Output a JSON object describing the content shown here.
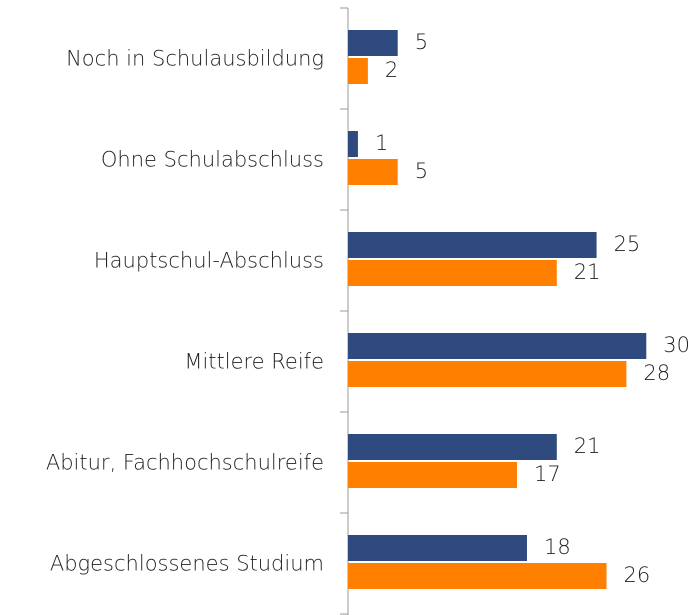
{
  "chart_data": {
    "type": "bar",
    "orientation": "horizontal",
    "categories": [
      "Noch in Schulausbildung",
      "Ohne Schulabschluss",
      "Hauptschul-Abschluss",
      "Mittlere Reife",
      "Abitur, Fachhochschulreife",
      "Abgeschlossenes Studium"
    ],
    "series": [
      {
        "color": "#2e4a7f",
        "values": [
          5,
          1,
          25,
          30,
          21,
          18
        ]
      },
      {
        "color": "#ff7f00",
        "values": [
          2,
          5,
          21,
          28,
          17,
          26
        ]
      }
    ],
    "xlim": [
      0,
      35
    ]
  }
}
